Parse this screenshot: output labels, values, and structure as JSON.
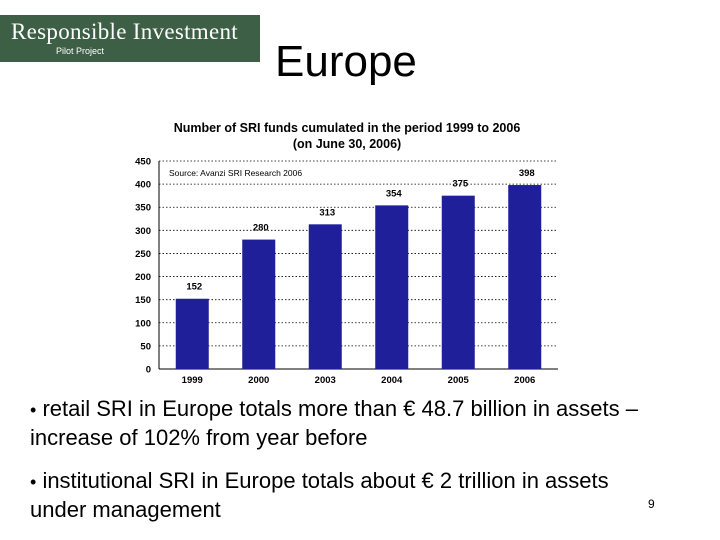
{
  "logo": {
    "main": "Responsible Investment",
    "sub": "Pilot Project"
  },
  "slide": {
    "title": "Europe",
    "page_number": "9"
  },
  "bullets": [
    {
      "marker": "•",
      "text": "retail SRI in Europe totals more than € 48.7 billion in assets – increase of 102% from year before"
    },
    {
      "marker": "•",
      "text": "institutional SRI in Europe totals about € 2 trillion in assets under management"
    }
  ],
  "colors": {
    "bar": "#1f1f99",
    "logo_bg": "#3c5f45"
  },
  "chart_data": {
    "type": "bar",
    "title": "Number of SRI funds cumulated in the period 1999 to 2006",
    "subtitle": "(on June 30, 2006)",
    "source": "Source: Avanzi SRI Research 2006",
    "categories": [
      "1999",
      "2000",
      "2003",
      "2004",
      "2005",
      "2006"
    ],
    "values": [
      152,
      280,
      313,
      354,
      375,
      398
    ],
    "value_labels": [
      "152",
      "280",
      "313",
      "354",
      "375",
      "398"
    ],
    "yticks": [
      "0",
      "50",
      "100",
      "150",
      "200",
      "250",
      "300",
      "350",
      "400",
      "450"
    ],
    "ylim": [
      0,
      450
    ],
    "xlabel": "",
    "ylabel": "",
    "grid": "horizontal dotted"
  }
}
